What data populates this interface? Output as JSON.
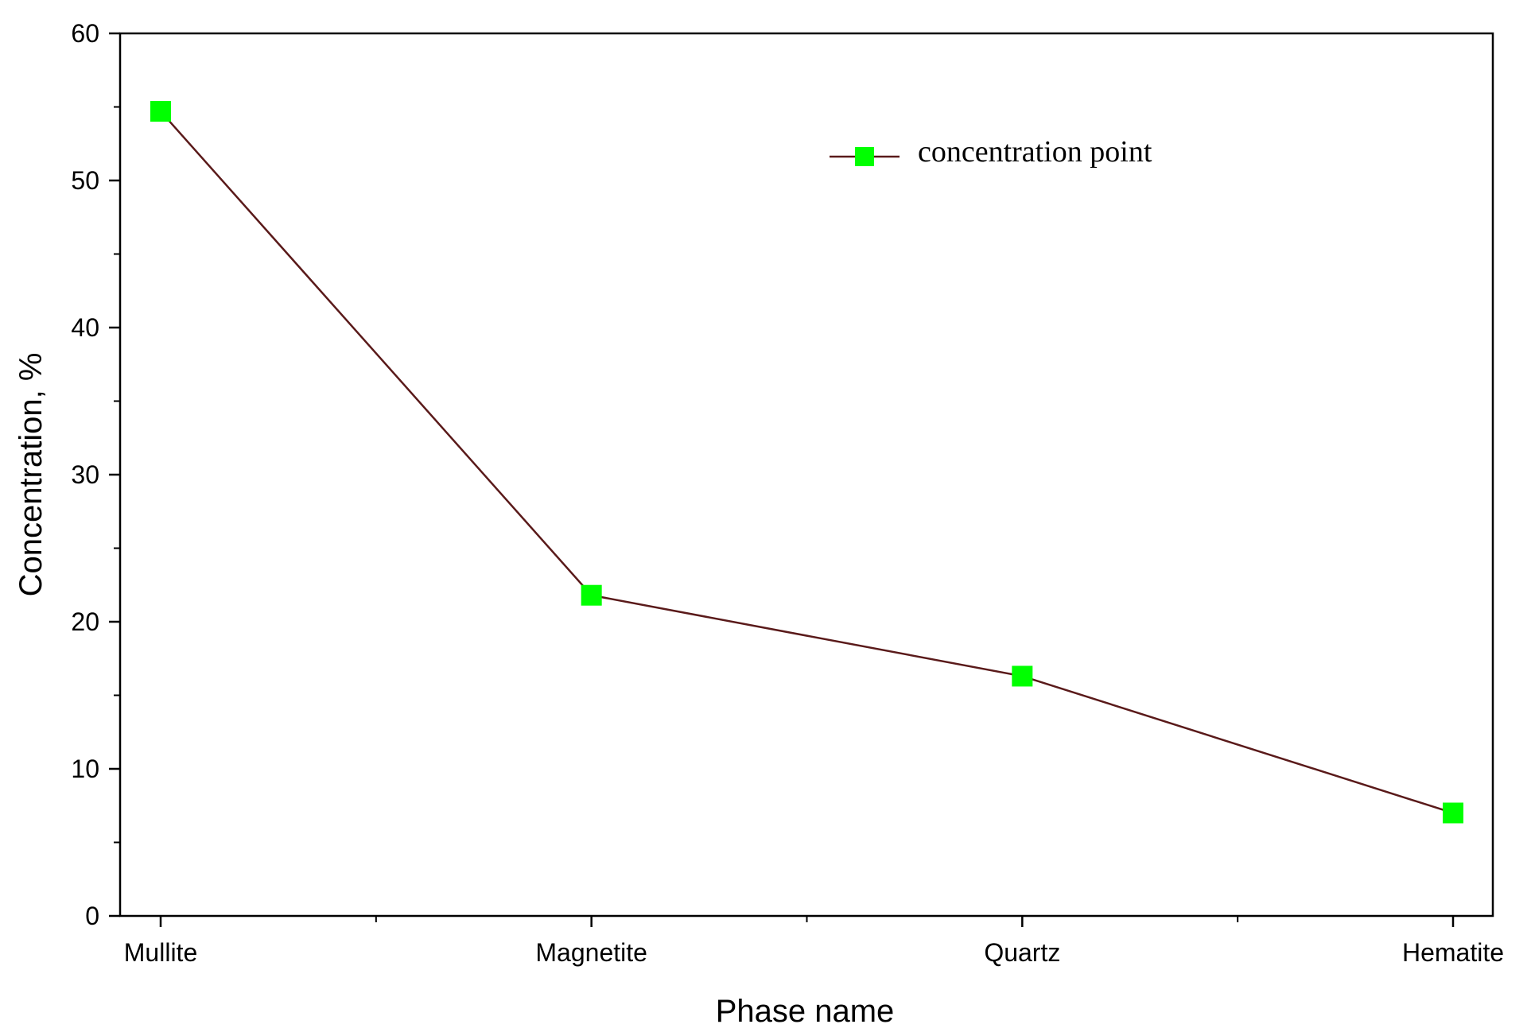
{
  "chart_data": {
    "type": "line",
    "categories": [
      "Mullite",
      "Magnetite",
      "Quartz",
      "Hematite"
    ],
    "series": [
      {
        "name": "concentration point",
        "values": [
          54.7,
          21.8,
          16.3,
          7.0
        ],
        "line_color": "#5a1a1a",
        "marker_color": "#00ff00",
        "marker": "square"
      }
    ],
    "xlabel": "Phase name",
    "ylabel": "Concentration, %",
    "ylim": [
      0,
      60
    ],
    "yticks": [
      0,
      10,
      20,
      30,
      40,
      50,
      60
    ],
    "grid": false,
    "legend": {
      "position": "top-right",
      "label": "concentration point"
    }
  }
}
